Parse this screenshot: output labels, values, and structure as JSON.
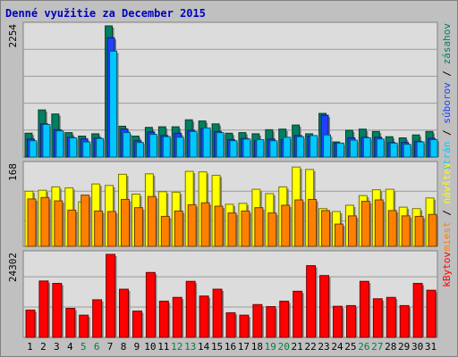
{
  "title": "Denné využitie za December 2015",
  "colors": {
    "background": "#c0c0c0",
    "plot": "#dcdcdc",
    "title": "#0000c0",
    "weekend": "#008040",
    "strán": "#00c8ff",
    "súborov": "#2040ff",
    "zásahov": "#008060",
    "návštev": "#ffff00",
    "miest": "#ff8000",
    "kBytov": "#ff0000"
  },
  "chart_data": [
    {
      "type": "bar",
      "title": "Denné využitie za December 2015",
      "categories": [
        1,
        2,
        3,
        4,
        5,
        6,
        7,
        8,
        9,
        10,
        11,
        12,
        13,
        14,
        15,
        16,
        17,
        18,
        19,
        20,
        21,
        22,
        23,
        24,
        25,
        26,
        27,
        28,
        29,
        30,
        31
      ],
      "weekend_days": [
        5,
        6,
        12,
        13,
        19,
        20,
        26,
        27
      ],
      "ylabel": "2254",
      "ylim": [
        0,
        2254
      ],
      "series": [
        {
          "name": "zásahov",
          "values": [
            410,
            810,
            740,
            420,
            360,
            400,
            2254,
            530,
            360,
            510,
            520,
            520,
            640,
            620,
            570,
            410,
            420,
            400,
            470,
            480,
            550,
            400,
            750,
            260,
            460,
            480,
            440,
            350,
            330,
            380,
            440
          ]
        },
        {
          "name": "súborov",
          "values": [
            310,
            570,
            470,
            340,
            310,
            330,
            2050,
            480,
            280,
            430,
            370,
            410,
            460,
            490,
            440,
            300,
            320,
            280,
            310,
            300,
            370,
            360,
            720,
            240,
            330,
            340,
            340,
            250,
            250,
            270,
            320
          ]
        },
        {
          "name": "strán",
          "values": [
            280,
            560,
            450,
            330,
            260,
            320,
            1820,
            420,
            250,
            390,
            350,
            340,
            440,
            500,
            420,
            280,
            310,
            300,
            280,
            340,
            350,
            370,
            380,
            240,
            290,
            330,
            310,
            240,
            220,
            260,
            300
          ]
        }
      ],
      "side_labels": [
        "strán",
        "súborov",
        "zásahov"
      ]
    },
    {
      "type": "bar",
      "categories": [
        1,
        2,
        3,
        4,
        5,
        6,
        7,
        8,
        9,
        10,
        11,
        12,
        13,
        14,
        15,
        16,
        17,
        18,
        19,
        20,
        21,
        22,
        23,
        24,
        25,
        26,
        27,
        28,
        29,
        30,
        31
      ],
      "ylabel": "168",
      "ylim": [
        0,
        168
      ],
      "series": [
        {
          "name": "návštev",
          "values": [
            114,
            116,
            123,
            121,
            92,
            129,
            126,
            149,
            108,
            150,
            113,
            112,
            155,
            154,
            147,
            87,
            89,
            118,
            109,
            123,
            164,
            159,
            78,
            72,
            85,
            105,
            117,
            118,
            81,
            78,
            100
          ]
        },
        {
          "name": "miest",
          "values": [
            98,
            101,
            94,
            75,
            106,
            73,
            72,
            97,
            80,
            103,
            62,
            73,
            86,
            90,
            83,
            69,
            73,
            80,
            69,
            85,
            96,
            97,
            74,
            46,
            63,
            93,
            96,
            74,
            63,
            62,
            66
          ]
        }
      ],
      "side_labels": [
        "miest",
        "návštev"
      ]
    },
    {
      "type": "bar",
      "categories": [
        1,
        2,
        3,
        4,
        5,
        6,
        7,
        8,
        9,
        10,
        11,
        12,
        13,
        14,
        15,
        16,
        17,
        18,
        19,
        20,
        21,
        22,
        23,
        24,
        25,
        26,
        27,
        28,
        29,
        30,
        31
      ],
      "ylabel": "24302",
      "ylim": [
        0,
        24302
      ],
      "series": [
        {
          "name": "kBytov",
          "values": [
            8000,
            16500,
            15800,
            8500,
            6500,
            11000,
            24302,
            14100,
            7700,
            19000,
            10600,
            11700,
            16400,
            12100,
            14100,
            7200,
            6500,
            9600,
            9000,
            10600,
            13500,
            21000,
            18100,
            9100,
            9300,
            16400,
            11300,
            11700,
            9300,
            15800,
            13800
          ]
        }
      ],
      "side_labels": [
        "kBytov"
      ]
    }
  ]
}
